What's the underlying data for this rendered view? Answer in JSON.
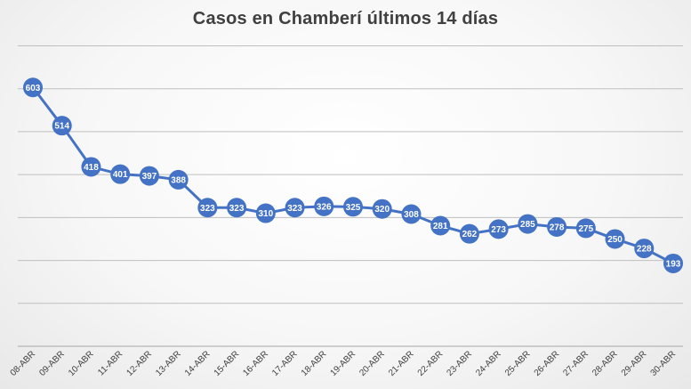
{
  "title": "Casos en Chamberí últimos 14 días",
  "colors": {
    "series": "#4472C4",
    "grid": "#bfbfbf",
    "axis": "#404040",
    "label_text": "#ffffff"
  },
  "chart_data": {
    "type": "line",
    "title": "Casos en Chamberí últimos 14 días",
    "xlabel": "",
    "ylabel": "",
    "ylim": [
      0,
      700
    ],
    "grid": true,
    "legend": "none",
    "categories": [
      "08-ABR",
      "09-ABR",
      "10-ABR",
      "11-ABR",
      "12-ABR",
      "13-ABR",
      "14-ABR",
      "15-ABR",
      "16-ABR",
      "17-ABR",
      "18-ABR",
      "19-ABR",
      "20-ABR",
      "21-ABR",
      "22-ABR",
      "23-ABR",
      "24-ABR",
      "25-ABR",
      "26-ABR",
      "27-ABR",
      "28-ABR",
      "29-ABR",
      "30-ABR"
    ],
    "series": [
      {
        "values": [
          603,
          514,
          418,
          401,
          397,
          388,
          323,
          323,
          310,
          323,
          326,
          325,
          320,
          308,
          281,
          262,
          273,
          285,
          278,
          275,
          250,
          228,
          193
        ]
      }
    ]
  }
}
